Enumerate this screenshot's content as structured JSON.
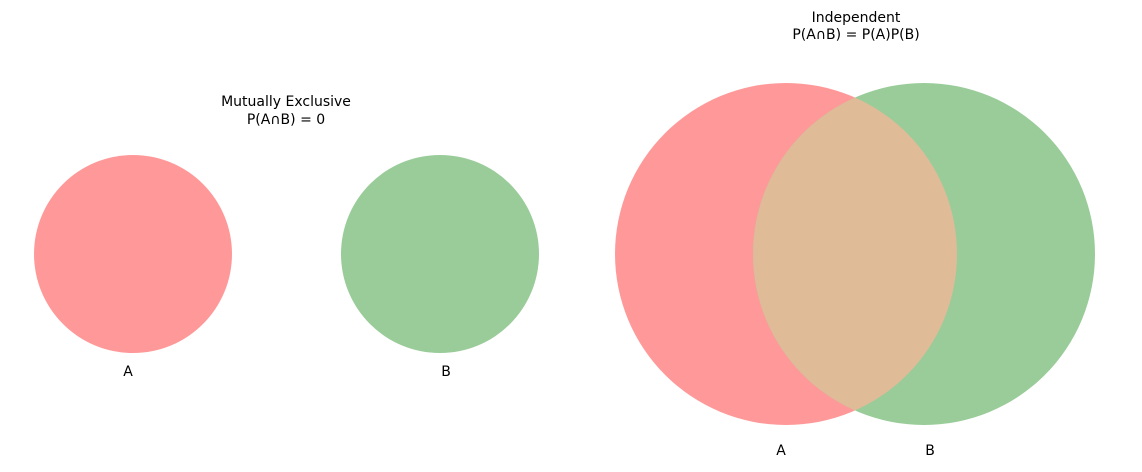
{
  "panels": {
    "mutually_exclusive": {
      "title_line1": "Mutually Exclusive",
      "title_line2": "P(A∩B) = 0",
      "label_a": "A",
      "label_b": "B"
    },
    "independent": {
      "title_line1": "Independent",
      "title_line2": "P(A∩B) = P(A)P(B)",
      "label_a": "A",
      "label_b": "B"
    }
  },
  "colors": {
    "set_a": "#ff9999",
    "set_b": "#99cc99",
    "overlap": "#dfbb98",
    "background": "#ffffff"
  }
}
